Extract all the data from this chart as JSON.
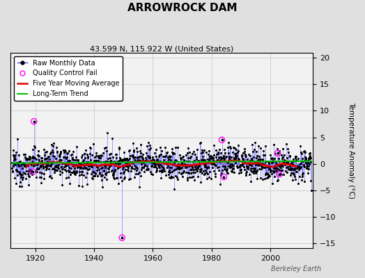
{
  "title": "ARROWROCK DAM",
  "subtitle": "43.599 N, 115.922 W (United States)",
  "ylabel": "Temperature Anomaly (°C)",
  "watermark": "Berkeley Earth",
  "year_start": 1912,
  "year_end": 2014,
  "ylim": [
    -16,
    21
  ],
  "yticks": [
    -15,
    -10,
    -5,
    0,
    5,
    10,
    15,
    20
  ],
  "xticks": [
    1920,
    1940,
    1960,
    1980,
    2000
  ],
  "background_color": "#e0e0e0",
  "plot_bg_color": "#f2f2f2",
  "raw_line_color": "#4444ff",
  "raw_marker_color": "#000000",
  "qc_fail_color": "#ff00ff",
  "moving_avg_color": "#dd0000",
  "trend_color": "#00bb00",
  "grid_color": "#cccccc",
  "seed": 12345,
  "qc_fail_points": [
    [
      1919.5,
      8.0
    ],
    [
      1919.2,
      -1.5
    ],
    [
      1983.5,
      4.5
    ],
    [
      1984.2,
      -2.5
    ],
    [
      1949.5,
      -14.0
    ],
    [
      2002.5,
      2.0
    ],
    [
      2003.0,
      -2.0
    ]
  ]
}
